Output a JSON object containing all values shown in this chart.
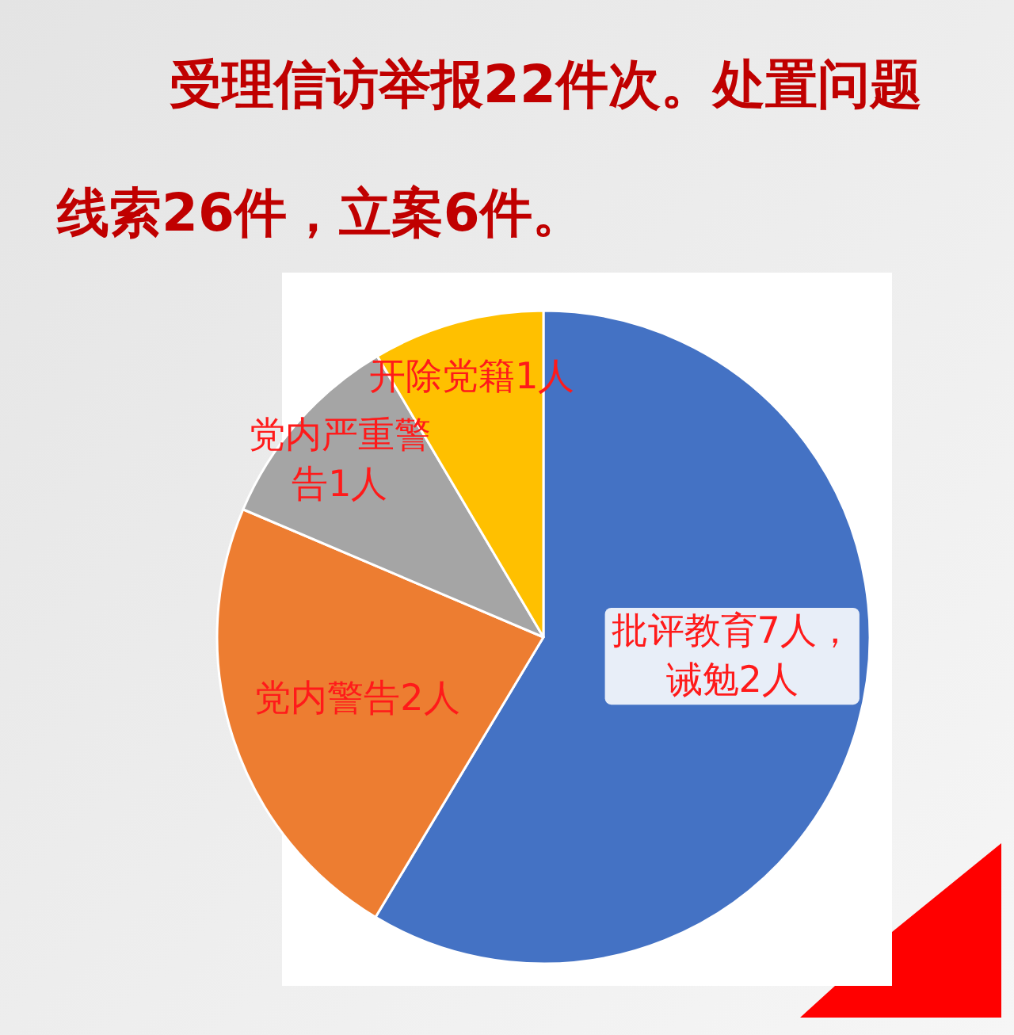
{
  "chart_data": {
    "type": "pie",
    "title": "受理信访举报22件次。处置问题线索26件，立案6件。",
    "categories": [
      "批评教育7人，诫勉2人",
      "党内警告2人",
      "党内严重警告1人",
      "开除党籍1人"
    ],
    "values": [
      58.6,
      22.8,
      10.1,
      8.5
    ],
    "colors": [
      "#4472c4",
      "#ed7d31",
      "#a5a5a5",
      "#ffc000"
    ]
  }
}
